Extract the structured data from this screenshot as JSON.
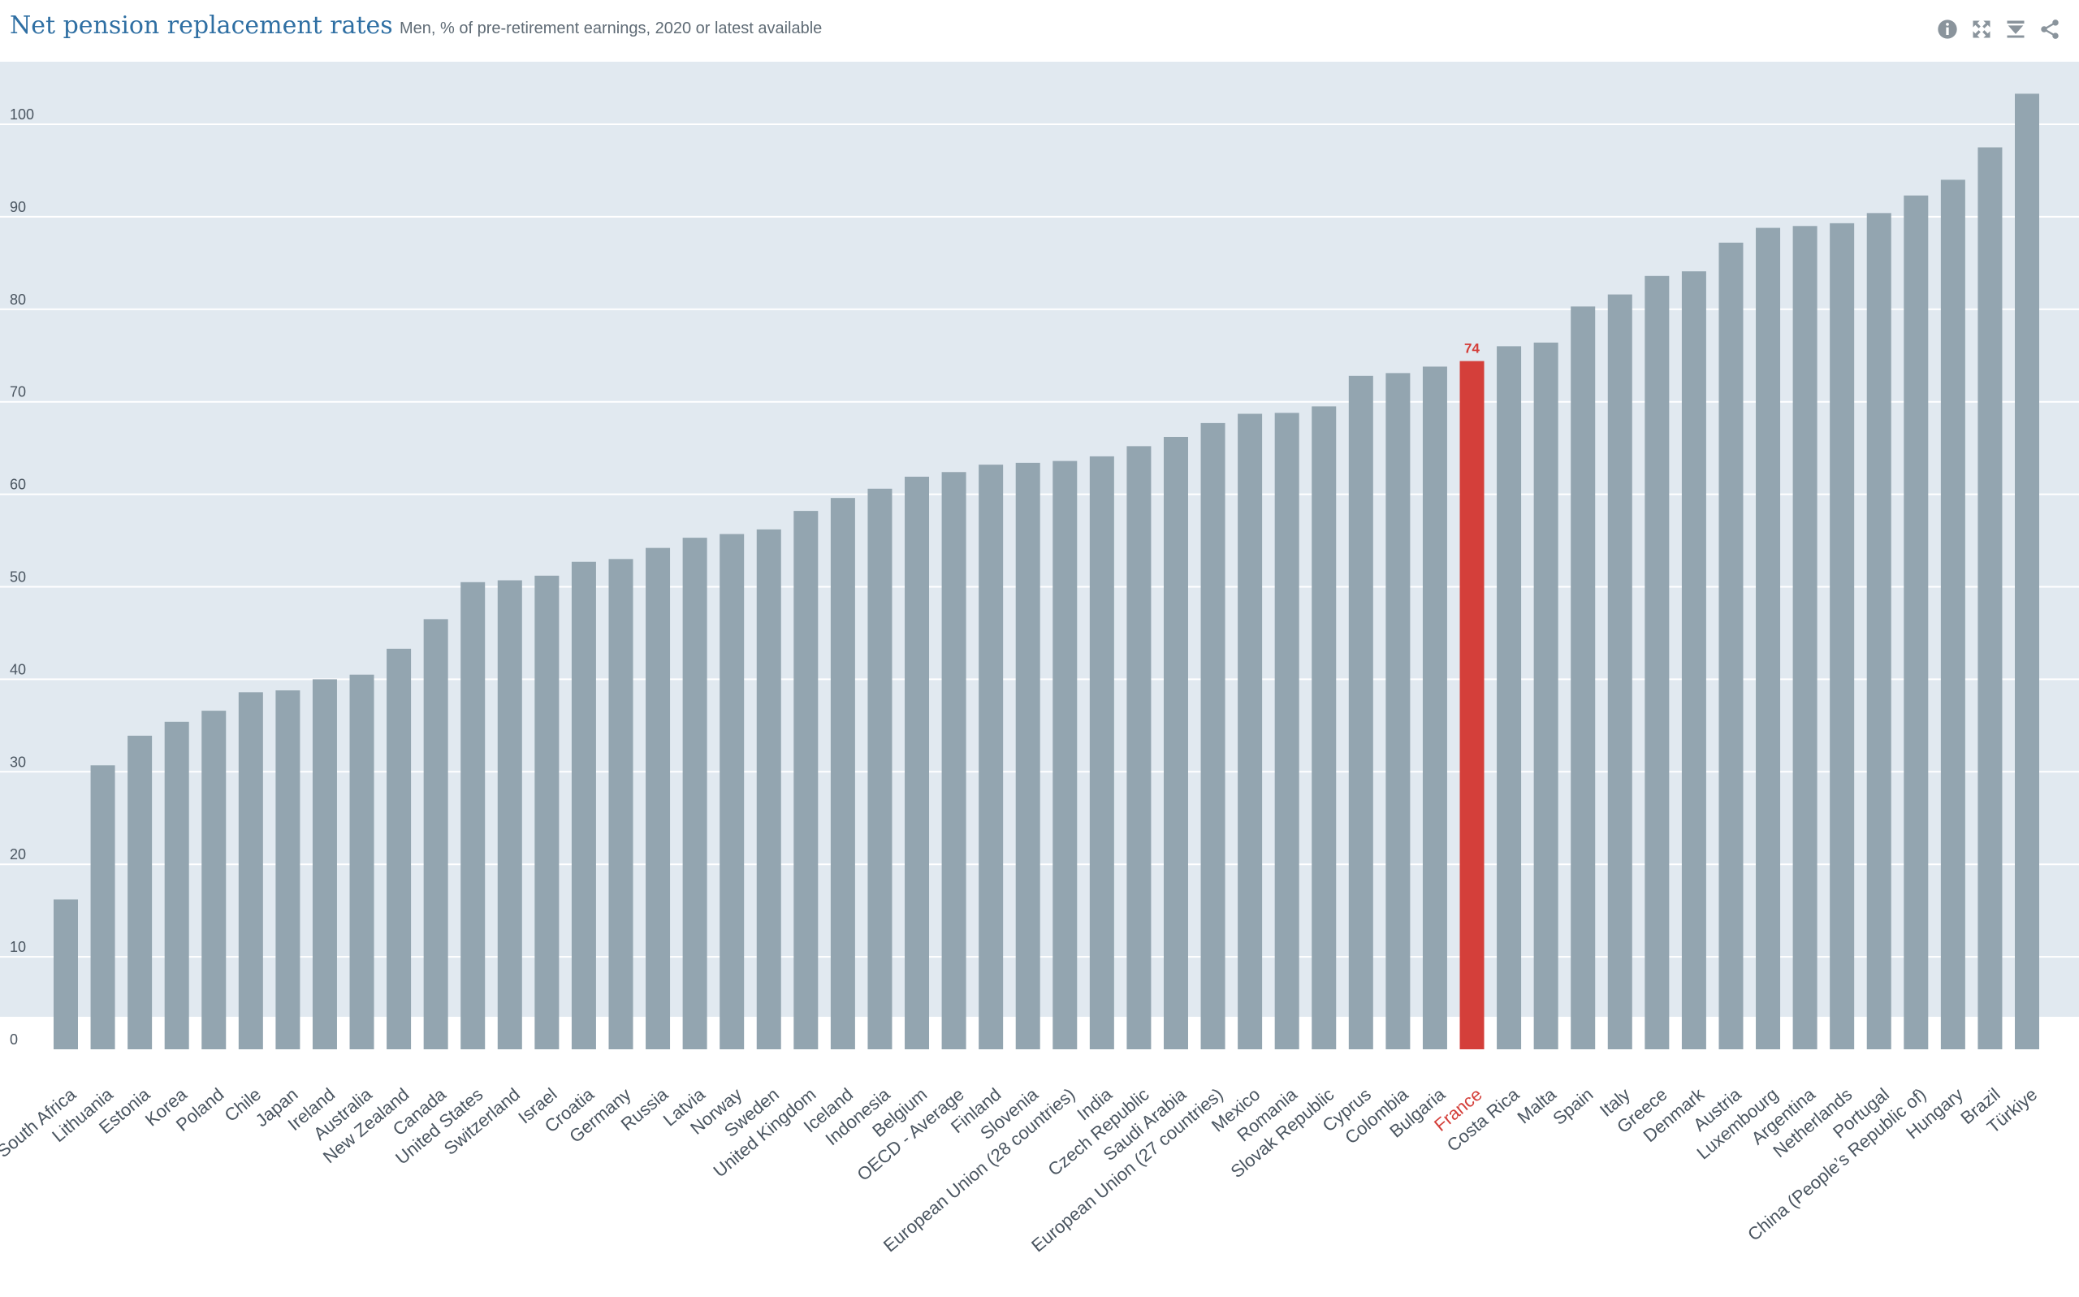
{
  "header": {
    "title": "Net pension replacement rates",
    "subtitle": "Men, % of pre-retirement earnings, 2020 or latest available"
  },
  "toolbar": {
    "icons": [
      "info-icon",
      "fullscreen-icon",
      "download-icon",
      "share-icon"
    ]
  },
  "colors": {
    "bar": "#93a5b0",
    "highlight": "#d43f3a",
    "plot_background": "#e1e9f0",
    "title": "#2f6fa3"
  },
  "chart_data": {
    "type": "bar",
    "title": "Net pension replacement rates",
    "subtitle": "Men, % of pre-retirement earnings, 2020 or latest available",
    "xlabel": "",
    "ylabel": "",
    "ylim": [
      0,
      106
    ],
    "yticks": [
      0,
      10,
      20,
      30,
      40,
      50,
      60,
      70,
      80,
      90,
      100
    ],
    "grid": true,
    "highlight": {
      "category": "France",
      "label": "74"
    },
    "categories": [
      "South Africa",
      "Lithuania",
      "Estonia",
      "Korea",
      "Poland",
      "Chile",
      "Japan",
      "Ireland",
      "Australia",
      "New Zealand",
      "Canada",
      "United States",
      "Switzerland",
      "Israel",
      "Croatia",
      "Germany",
      "Russia",
      "Latvia",
      "Norway",
      "Sweden",
      "United Kingdom",
      "Iceland",
      "Indonesia",
      "Belgium",
      "OECD - Average",
      "Finland",
      "Slovenia",
      "European Union (28 countries)",
      "India",
      "Czech Republic",
      "Saudi Arabia",
      "European Union (27 countries)",
      "Mexico",
      "Romania",
      "Slovak Republic",
      "Cyprus",
      "Colombia",
      "Bulgaria",
      "France",
      "Costa Rica",
      "Malta",
      "Spain",
      "Italy",
      "Greece",
      "Denmark",
      "Austria",
      "Luxembourg",
      "Argentina",
      "Netherlands",
      "Portugal",
      "China (People’s Republic of)",
      "Hungary",
      "Brazil",
      "Türkiye"
    ],
    "values": [
      16.2,
      30.7,
      33.9,
      35.4,
      36.6,
      38.6,
      38.8,
      40.0,
      40.5,
      43.3,
      46.5,
      50.5,
      50.7,
      51.2,
      52.7,
      53.0,
      54.2,
      55.3,
      55.7,
      56.2,
      58.2,
      59.6,
      60.6,
      61.9,
      62.4,
      63.2,
      63.4,
      63.6,
      64.1,
      65.2,
      66.2,
      67.7,
      68.7,
      68.8,
      69.5,
      72.8,
      73.1,
      73.8,
      74.4,
      76.0,
      76.4,
      80.3,
      81.6,
      83.6,
      84.1,
      87.2,
      88.8,
      89.0,
      89.3,
      90.4,
      92.3,
      94.0,
      97.5,
      103.3
    ]
  }
}
